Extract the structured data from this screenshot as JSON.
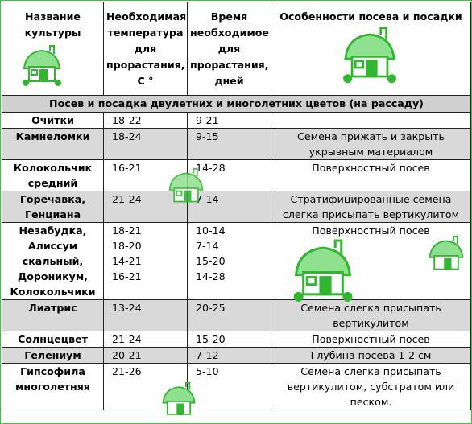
{
  "headers": {
    "culture": "Название культуры",
    "temperature": "Необходимая температура для прорастания, С °",
    "time": "Время необходимое для прорастания, дней",
    "features": "Особенности посева и посадки"
  },
  "section_title": "Посев и посадка двулетних и многолетних цветов (на рассаду)",
  "rows": [
    {
      "name": "Очитки",
      "temp": "18-22",
      "days": "9-21",
      "note": ""
    },
    {
      "name": "Камнеломки",
      "temp": "18-24",
      "days": "9-15",
      "note": "Семена прижать и закрыть укрывным материалом"
    },
    {
      "name": "Колокольчик средний",
      "temp": "16-21",
      "days": "14-28",
      "note": "Поверхностный посев"
    },
    {
      "name": "Горечавка, Генциана",
      "temp": "21-24",
      "days": "7-14",
      "note": "Стратифицированные семена слегка присыпать вертикулитом"
    },
    {
      "name": "Незабудка, Алиссум скальный, Дороникум, Колокольчики",
      "temp": "18-21\n18-20\n14-21\n16-21",
      "days": "10-14\n7-14\n15-20\n14-28",
      "note": "Поверхностный посев"
    },
    {
      "name": "Лиатрис",
      "temp": "13-24",
      "days": "20-25",
      "note": "Семена слегка присыпать вертикулитом"
    },
    {
      "name": "Солнцецвет",
      "temp": "21-24",
      "days": "15-20",
      "note": "Поверхностный посев"
    },
    {
      "name": "Гелениум",
      "temp": "20-21",
      "days": "7-12",
      "note": "Глубина посева 1-2 см"
    },
    {
      "name": "Гипсофила многолетняя",
      "temp": "21-26",
      "days": "5-10",
      "note": "Семена слегка присыпать вертикулитом, субстратом или песком."
    }
  ],
  "colors": {
    "frame": "#33cc33",
    "section_bg": "#d0d0d0",
    "shaded_row": "#d9d9d9",
    "deco_green": "#2db82d"
  },
  "decorations": [
    "house-icon"
  ]
}
